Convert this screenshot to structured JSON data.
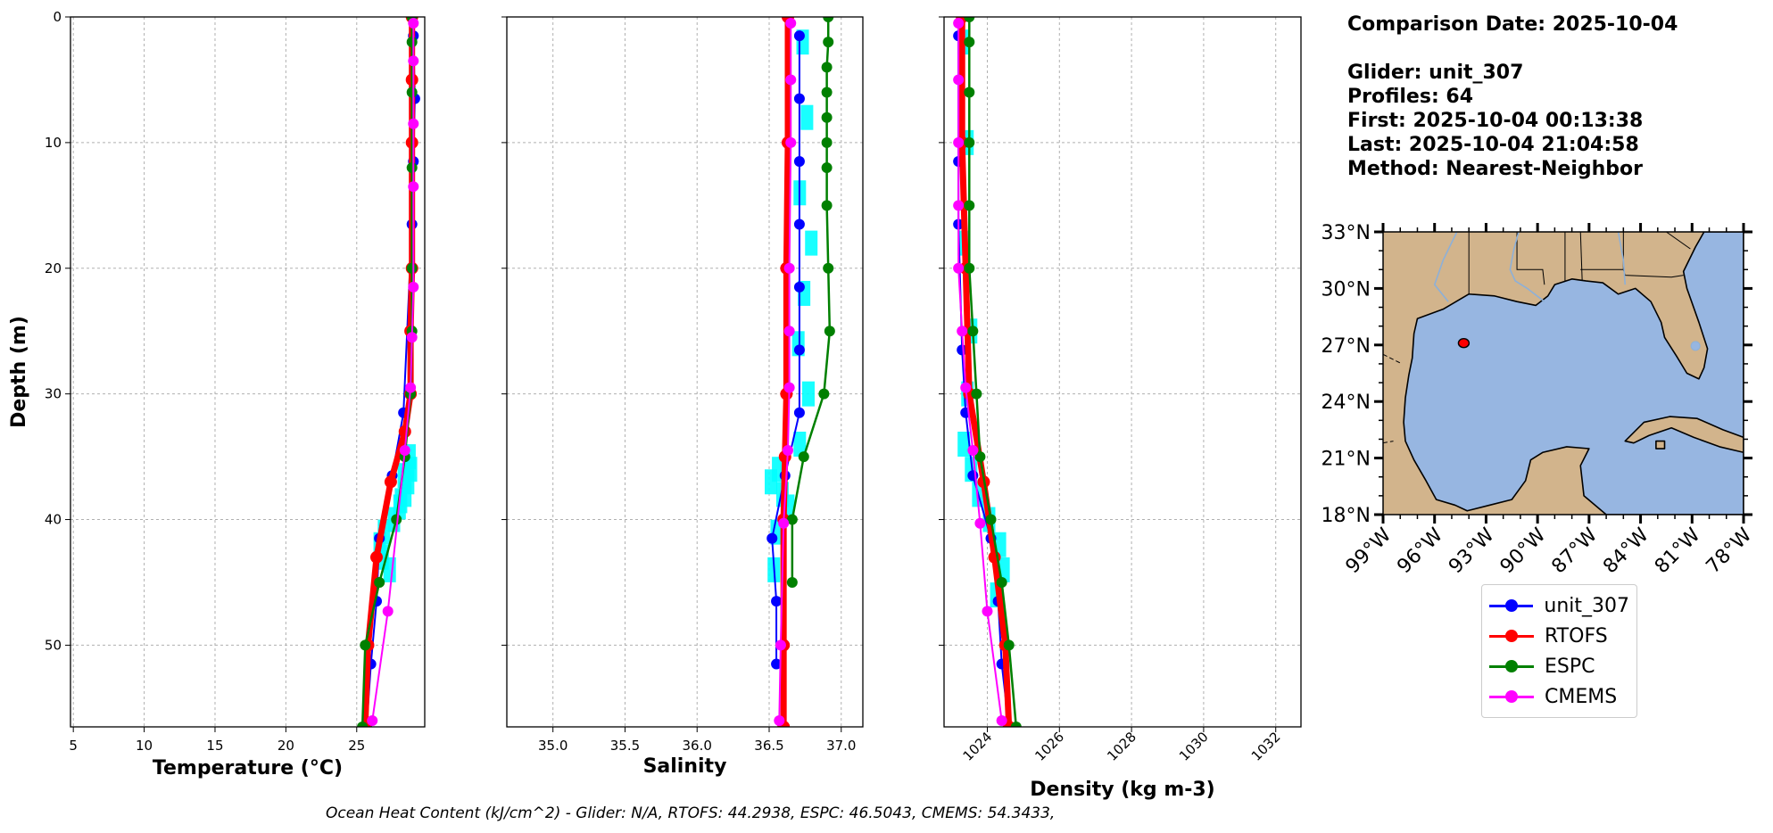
{
  "info": {
    "comparison_date": "Comparison Date: 2025-10-04",
    "glider": "Glider: unit_307",
    "profiles": "Profiles: 64",
    "first": "First: 2025-10-04 00:13:38",
    "last": "Last: 2025-10-04 21:04:58",
    "method": "Method: Nearest-Neighbor"
  },
  "footer": "Ocean Heat Content (kJ/cm^2) - Glider: N/A,  RTOFS: 44.2938,  ESPC: 46.5043,  CMEMS: 54.3433,",
  "legend": [
    {
      "name": "unit_307",
      "color": "#0000ff"
    },
    {
      "name": "RTOFS",
      "color": "#ff0000"
    },
    {
      "name": "ESPC",
      "color": "#008000"
    },
    {
      "name": "CMEMS",
      "color": "#ff00ff"
    }
  ],
  "colors": {
    "glider_scatter": "#00ffff",
    "land": "#d2b48c",
    "ocean": "#97b6e1",
    "grid": "#b0b0b0"
  },
  "chart_data": [
    {
      "type": "line",
      "xlabel": "Temperature (°C)",
      "ylabel": "Depth (m)",
      "xlim": [
        4.8,
        29.8
      ],
      "ylim": [
        56.5,
        0
      ],
      "xticks": [
        5,
        10,
        15,
        20,
        25
      ],
      "yticks": [
        0,
        10,
        20,
        30,
        40,
        50
      ],
      "grid": true,
      "scatter": {
        "name": "unit_307",
        "x": [
          28.6,
          28.7,
          28.5,
          28.3,
          27.9,
          27.5,
          26.8,
          26.5,
          26.7,
          27.2,
          28.2,
          28.0
        ],
        "y": [
          35.0,
          36.0,
          37.0,
          38.0,
          39.0,
          40.0,
          41.0,
          42.0,
          43.0,
          44.0,
          36.5,
          38.5
        ]
      },
      "series": [
        {
          "name": "unit_307",
          "x": [
            29.0,
            29.1,
            29.0,
            28.9,
            28.3,
            27.5,
            26.6,
            26.4,
            26.0,
            25.7
          ],
          "y": [
            1.5,
            6.5,
            11.5,
            16.5,
            31.5,
            36.5,
            41.5,
            46.5,
            51.5,
            56.5
          ]
        },
        {
          "name": "RTOFS",
          "x": [
            28.9,
            28.9,
            28.9,
            28.9,
            28.8,
            28.8,
            28.4,
            27.4,
            26.4,
            25.8,
            25.6
          ],
          "y": [
            0,
            5,
            10,
            20,
            25,
            30,
            33,
            37,
            43,
            50,
            56.5
          ]
        },
        {
          "name": "ESPC",
          "x": [
            28.9,
            28.9,
            28.9,
            28.9,
            28.9,
            28.9,
            28.8,
            28.4,
            27.8,
            26.6,
            25.6,
            25.4
          ],
          "y": [
            0,
            2,
            6,
            12,
            20,
            25,
            30,
            35,
            40,
            45,
            50,
            56.5
          ]
        },
        {
          "name": "CMEMS",
          "x": [
            29.0,
            29.0,
            29.0,
            29.0,
            29.0,
            28.9,
            28.8,
            28.4,
            27.2,
            26.1
          ],
          "y": [
            0.5,
            3.5,
            8.5,
            13.5,
            21.5,
            25.5,
            29.5,
            34.5,
            47.3,
            56.0
          ]
        }
      ]
    },
    {
      "type": "line",
      "xlabel": "Salinity",
      "ylabel": "",
      "xlim": [
        34.68,
        37.15
      ],
      "ylim": [
        56.5,
        0
      ],
      "xticks": [
        35.0,
        35.5,
        36.0,
        36.5,
        37.0
      ],
      "yticks": [
        0,
        10,
        20,
        30,
        40,
        50
      ],
      "grid": true,
      "scatter": {
        "name": "unit_307",
        "x": [
          36.72,
          36.75,
          36.7,
          36.78,
          36.73,
          36.69,
          36.76,
          36.7,
          36.55,
          36.5,
          36.58,
          36.62,
          36.54,
          36.52
        ],
        "y": [
          2,
          8,
          14,
          18,
          22,
          26,
          30,
          34,
          36,
          37,
          38,
          39,
          41,
          44
        ]
      },
      "series": [
        {
          "name": "unit_307",
          "x": [
            36.71,
            36.71,
            36.71,
            36.71,
            36.71,
            36.71,
            36.71,
            36.61,
            36.52,
            36.55,
            36.55
          ],
          "y": [
            1.5,
            6.5,
            11.5,
            16.5,
            21.5,
            26.5,
            31.5,
            36.5,
            41.5,
            46.5,
            51.5
          ]
        },
        {
          "name": "RTOFS",
          "x": [
            36.63,
            36.63,
            36.62,
            36.62,
            36.61,
            36.6,
            36.6,
            36.6
          ],
          "y": [
            0,
            10,
            20,
            30,
            35,
            40,
            50,
            56.5
          ]
        },
        {
          "name": "ESPC",
          "x": [
            36.91,
            36.91,
            36.9,
            36.9,
            36.9,
            36.9,
            36.9,
            36.9,
            36.91,
            36.92,
            36.88,
            36.74,
            36.66,
            36.66
          ],
          "y": [
            0,
            2,
            4,
            6,
            8,
            10,
            12,
            15,
            20,
            25,
            30,
            35,
            40,
            45
          ]
        },
        {
          "name": "CMEMS",
          "x": [
            36.65,
            36.65,
            36.65,
            36.64,
            36.64,
            36.64,
            36.63,
            36.6,
            36.58,
            36.57
          ],
          "y": [
            0.5,
            5,
            10,
            20,
            25,
            29.5,
            34.5,
            40.3,
            50,
            56
          ]
        }
      ]
    },
    {
      "type": "line",
      "xlabel": "Density (kg m-3)",
      "ylabel": "",
      "xlim": [
        1022.8,
        1032.7
      ],
      "ylim": [
        56.5,
        0
      ],
      "xticks": [
        1024,
        1026,
        1028,
        1030,
        1032
      ],
      "yticks": [
        0,
        10,
        20,
        30,
        40,
        50
      ],
      "grid": true,
      "scatter": {
        "name": "unit_307",
        "x": [
          1023.3,
          1023.4,
          1023.3,
          1023.5,
          1023.4,
          1023.3,
          1023.5,
          1023.7,
          1024.0,
          1024.3,
          1024.4,
          1024.2
        ],
        "y": [
          2,
          10,
          18,
          25,
          30,
          34,
          36,
          38,
          40,
          42,
          44,
          46
        ]
      },
      "series": [
        {
          "name": "unit_307",
          "x": [
            1023.2,
            1023.2,
            1023.2,
            1023.3,
            1023.4,
            1023.6,
            1024.1,
            1024.3,
            1024.4,
            1024.6
          ],
          "y": [
            1.5,
            11.5,
            16.5,
            26.5,
            31.5,
            36.5,
            41.5,
            46.5,
            51.5,
            56.5
          ]
        },
        {
          "name": "RTOFS",
          "x": [
            1023.3,
            1023.3,
            1023.4,
            1023.5,
            1023.9,
            1024.2,
            1024.5,
            1024.6
          ],
          "y": [
            0,
            10,
            20,
            30,
            37,
            43,
            50,
            56.5
          ]
        },
        {
          "name": "ESPC",
          "x": [
            1023.5,
            1023.5,
            1023.5,
            1023.5,
            1023.5,
            1023.5,
            1023.6,
            1023.7,
            1023.8,
            1024.1,
            1024.4,
            1024.6,
            1024.8
          ],
          "y": [
            0,
            2,
            6,
            10,
            15,
            20,
            25,
            30,
            35,
            40,
            45,
            50,
            56.5
          ]
        },
        {
          "name": "CMEMS",
          "x": [
            1023.2,
            1023.2,
            1023.2,
            1023.2,
            1023.2,
            1023.3,
            1023.4,
            1023.6,
            1023.8,
            1024.0,
            1024.4
          ],
          "y": [
            0.5,
            5,
            10,
            15,
            20,
            25,
            29.5,
            34.5,
            40.3,
            47.3,
            56
          ]
        }
      ]
    },
    {
      "type": "map",
      "lat_range": [
        18,
        33
      ],
      "lon_range": [
        -99,
        -78
      ],
      "lat_ticks": [
        "18°N",
        "21°N",
        "24°N",
        "27°N",
        "30°N",
        "33°N"
      ],
      "lon_ticks": [
        "99°W",
        "96°W",
        "93°W",
        "90°W",
        "87°W",
        "84°W",
        "81°W",
        "78°W"
      ],
      "glider_position": {
        "lat": 27.1,
        "lon": -94.3
      }
    }
  ]
}
